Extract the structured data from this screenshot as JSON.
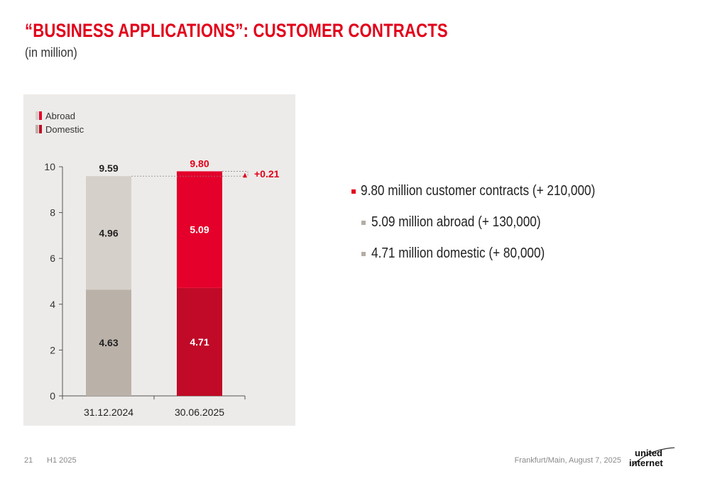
{
  "header": {
    "title": "“BUSINESS APPLICATIONS”: CUSTOMER CONTRACTS",
    "subtitle": "(in million)"
  },
  "chart_data": {
    "type": "bar",
    "stacked": true,
    "categories": [
      "31.12.2024",
      "30.06.2025"
    ],
    "series": [
      {
        "name": "Domestic",
        "values": [
          4.63,
          4.71
        ],
        "labels": [
          "4.63",
          "4.71"
        ]
      },
      {
        "name": "Abroad",
        "values": [
          4.96,
          5.09
        ],
        "labels": [
          "4.96",
          "5.09"
        ]
      }
    ],
    "totals": [
      9.59,
      9.8
    ],
    "total_labels": [
      "9.59",
      "9.80"
    ],
    "change_label": "+0.21",
    "ylim": [
      0,
      10
    ],
    "yticks": [
      0,
      2,
      4,
      6,
      8,
      10
    ],
    "grid": false,
    "legend_position": "top-left",
    "colors": {
      "domestic": [
        "#bab1a8",
        "#c00a27"
      ],
      "abroad": [
        "#d6d0ca",
        "#e4002b"
      ],
      "highlight": "#e2001a",
      "panel": "#edebe9"
    }
  },
  "bullets": [
    {
      "level": 1,
      "text": "9.80 million customer contracts (+ 210,000)"
    },
    {
      "level": 2,
      "text": "5.09 million abroad (+ 130,000)"
    },
    {
      "level": 2,
      "text": "4.71 million domestic (+ 80,000)"
    }
  ],
  "footer": {
    "page_number": "21",
    "period": "H1 2025",
    "location_date": "Frankfurt/Main, August 7, 2025",
    "logo_line1": "united",
    "logo_line2": "internet"
  }
}
